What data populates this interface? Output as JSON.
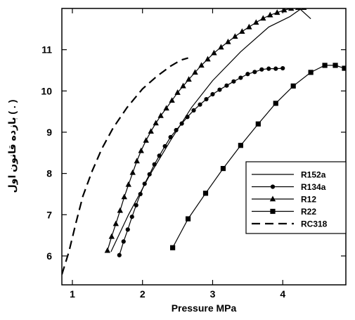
{
  "chart_data": {
    "type": "line",
    "xlabel": "Pressure MPa",
    "ylabel": "بازده قانون اول ( . )",
    "xlim": [
      0.85,
      4.9
    ],
    "ylim": [
      5.3,
      12.0
    ],
    "xticks": [
      1,
      2,
      3,
      4
    ],
    "yticks": [
      6,
      7,
      8,
      9,
      10,
      11
    ],
    "grid": false,
    "legend_position": "lower-right",
    "series": [
      {
        "name": "R152a",
        "marker": "none",
        "dash": "solid",
        "x": [
          1.55,
          1.8,
          2.1,
          2.4,
          2.7,
          3.0,
          3.4,
          3.8,
          4.1,
          4.25,
          4.4
        ],
        "y": [
          6.1,
          7.0,
          7.95,
          8.8,
          9.6,
          10.25,
          10.95,
          11.55,
          11.8,
          11.98,
          11.75
        ]
      },
      {
        "name": "R134a",
        "marker": "circle",
        "dash": "solid",
        "x": [
          1.67,
          1.73,
          1.79,
          1.85,
          1.91,
          1.97,
          2.03,
          2.1,
          2.17,
          2.24,
          2.32,
          2.4,
          2.48,
          2.56,
          2.64,
          2.73,
          2.82,
          2.91,
          3.0,
          3.1,
          3.2,
          3.3,
          3.4,
          3.5,
          3.6,
          3.7,
          3.8,
          3.9,
          4.0
        ],
        "y": [
          6.02,
          6.35,
          6.64,
          6.95,
          7.23,
          7.5,
          7.75,
          7.98,
          8.22,
          8.43,
          8.66,
          8.88,
          9.05,
          9.21,
          9.37,
          9.53,
          9.67,
          9.8,
          9.92,
          10.03,
          10.13,
          10.23,
          10.32,
          10.41,
          10.46,
          10.52,
          10.54,
          10.54,
          10.55
        ]
      },
      {
        "name": "R12",
        "marker": "triangle",
        "dash": "solid",
        "x": [
          1.5,
          1.56,
          1.62,
          1.68,
          1.74,
          1.8,
          1.86,
          1.92,
          1.98,
          2.05,
          2.12,
          2.19,
          2.26,
          2.34,
          2.42,
          2.5,
          2.58,
          2.66,
          2.75,
          2.84,
          2.93,
          3.02,
          3.12,
          3.22,
          3.32,
          3.42,
          3.52,
          3.62,
          3.72,
          3.82,
          3.92,
          4.02,
          4.12,
          4.22,
          4.3
        ],
        "y": [
          6.13,
          6.47,
          6.78,
          7.1,
          7.43,
          7.73,
          8.02,
          8.3,
          8.55,
          8.8,
          9.02,
          9.22,
          9.4,
          9.58,
          9.77,
          9.96,
          10.12,
          10.28,
          10.45,
          10.62,
          10.77,
          10.92,
          11.06,
          11.19,
          11.32,
          11.44,
          11.55,
          11.66,
          11.76,
          11.84,
          11.9,
          11.96,
          12.0,
          12.02,
          12.02
        ]
      },
      {
        "name": "R22",
        "marker": "square",
        "dash": "solid",
        "x": [
          2.43,
          2.65,
          2.9,
          3.15,
          3.4,
          3.65,
          3.9,
          4.15,
          4.4,
          4.6,
          4.75,
          4.88
        ],
        "y": [
          6.2,
          6.9,
          7.52,
          8.12,
          8.68,
          9.2,
          9.7,
          10.12,
          10.45,
          10.62,
          10.62,
          10.55
        ]
      },
      {
        "name": "RC318",
        "marker": "none",
        "dash": "dashed",
        "x": [
          0.85,
          0.95,
          1.05,
          1.15,
          1.28,
          1.42,
          1.58,
          1.78,
          2.0,
          2.2,
          2.4,
          2.55,
          2.65
        ],
        "y": [
          5.55,
          6.1,
          6.8,
          7.45,
          8.05,
          8.6,
          9.1,
          9.6,
          10.05,
          10.35,
          10.6,
          10.75,
          10.8
        ]
      }
    ]
  }
}
